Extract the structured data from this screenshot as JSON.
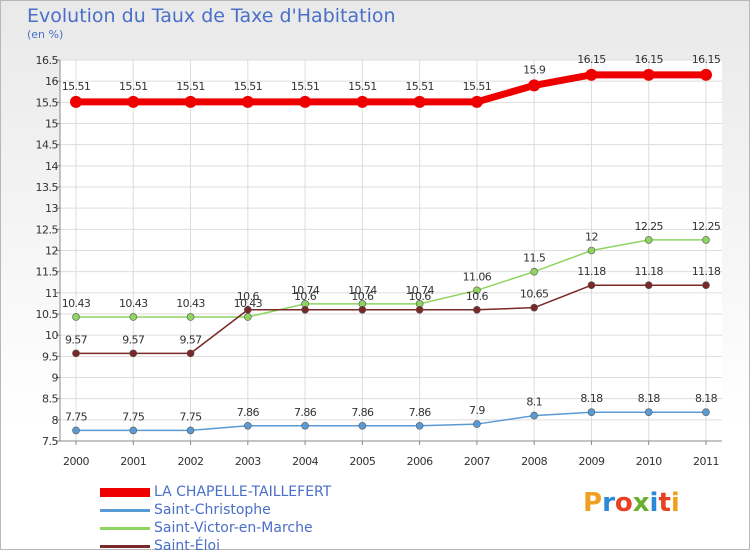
{
  "header": {
    "title": "Evolution du Taux de Taxe d'Habitation",
    "subtitle": "(en %)"
  },
  "logo": {
    "text": "Proxiti",
    "colors": [
      "#f0a020",
      "#2a8ad8",
      "#e84020",
      "#6ab030",
      "#2a8ad8",
      "#e84020",
      "#f0a020"
    ]
  },
  "chart_data": {
    "type": "line",
    "title": "Evolution du Taux de Taxe d'Habitation",
    "ylabel": "(en %)",
    "xlabel": "",
    "categories": [
      "2000",
      "2001",
      "2002",
      "2003",
      "2004",
      "2005",
      "2006",
      "2007",
      "2008",
      "2009",
      "2010",
      "2011"
    ],
    "ylim": [
      7.5,
      16.5
    ],
    "yticks": [
      "7.5",
      "8",
      "8.5",
      "9",
      "9.5",
      "10",
      "10.5",
      "11",
      "11.5",
      "12",
      "12.5",
      "13",
      "13.5",
      "14",
      "14.5",
      "15",
      "15.5",
      "16",
      "16.5"
    ],
    "grid": true,
    "legend_position": "bottom-left",
    "series": [
      {
        "name": "LA CHAPELLE-TAILLEFERT",
        "color": "#ee0000",
        "values": [
          15.51,
          15.51,
          15.51,
          15.51,
          15.51,
          15.51,
          15.51,
          15.51,
          15.9,
          16.15,
          16.15,
          16.15
        ],
        "labels": [
          "15.51",
          "15.51",
          "15.51",
          "15.51",
          "15.51",
          "15.51",
          "15.51",
          "15.51",
          "15.9",
          "16.15",
          "16.15",
          "16.15"
        ]
      },
      {
        "name": "Saint-Christophe",
        "color": "#5b9bd5",
        "values": [
          7.75,
          7.75,
          7.75,
          7.86,
          7.86,
          7.86,
          7.86,
          7.9,
          8.1,
          8.18,
          8.18,
          8.18
        ],
        "labels": [
          "7.75",
          "7.75",
          "7.75",
          "7.86",
          "7.86",
          "7.86",
          "7.86",
          "7.9",
          "8.1",
          "8.18",
          "8.18",
          "8.18"
        ]
      },
      {
        "name": "Saint-Victor-en-Marche",
        "color": "#8fd460",
        "values": [
          10.43,
          10.43,
          10.43,
          10.43,
          10.74,
          10.74,
          10.74,
          11.06,
          11.5,
          12,
          12.25,
          12.25
        ],
        "labels": [
          "10.43",
          "10.43",
          "10.43",
          "10.43",
          "10.74",
          "10.74",
          "10.74",
          "11.06",
          "11.5",
          "12",
          "12.25",
          "12.25"
        ]
      },
      {
        "name": "Saint-Éloi",
        "color": "#7a2828",
        "values": [
          9.57,
          9.57,
          9.57,
          10.6,
          10.6,
          10.6,
          10.6,
          10.6,
          10.65,
          11.18,
          11.18,
          11.18
        ],
        "labels": [
          "9.57",
          "9.57",
          "9.57",
          "10.6",
          "10.6",
          "10.6",
          "10.6",
          "10.6",
          "10.65",
          "11.18",
          "11.18",
          "11.18"
        ]
      }
    ]
  }
}
